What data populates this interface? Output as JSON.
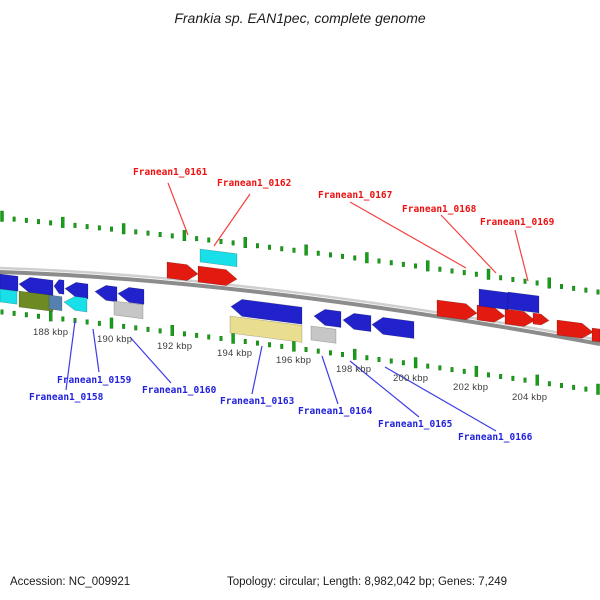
{
  "title": "Frankia sp. EAN1pec, complete genome",
  "ruler": {
    "labels": [
      "188 kbp",
      "190 kbp",
      "192 kbp",
      "194 kbp",
      "196 kbp",
      "198 kbp",
      "200 kbp",
      "202 kbp",
      "204 kbp"
    ]
  },
  "genes": {
    "top_labels": [
      "Franean1_0161",
      "Franean1_0162",
      "Franean1_0167",
      "Franean1_0168",
      "Franean1_0169"
    ],
    "bottom_labels": [
      "Franean1_0158",
      "Franean1_0159",
      "Franean1_0160",
      "Franean1_0163",
      "Franean1_0164",
      "Franean1_0165",
      "Franean1_0166"
    ]
  },
  "footer": {
    "accession": "Accession: NC_009921",
    "info": "Topology: circular; Length: 8,982,042 bp; Genes: 7,249"
  },
  "colors": {
    "gene_red": "#e31a10",
    "gene_blue": "#2222cc",
    "gene_cyan": "#18dfe8",
    "gene_olive": "#6d8b22",
    "gene_steel": "#5580b0",
    "gene_khaki": "#e9dd90",
    "gene_gray": "#c6c6c6",
    "tick_green": "#16a016",
    "label_red": "#ee1111",
    "label_blue": "#2222dd",
    "backbone_gray": "#8c8c8c"
  }
}
